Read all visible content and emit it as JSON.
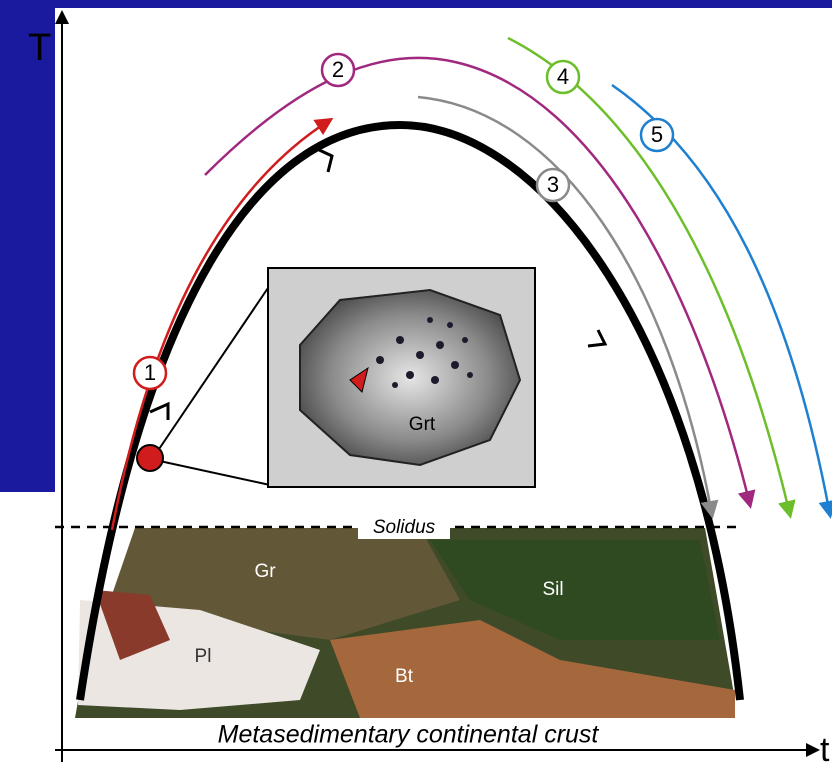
{
  "axes": {
    "y_label": "T",
    "x_label": "t"
  },
  "paths": [
    {
      "label": "1"
    },
    {
      "label": "2"
    },
    {
      "label": "3"
    },
    {
      "label": "4"
    },
    {
      "label": "5"
    }
  ],
  "solidus": "Solidus",
  "inset_label": "Grt",
  "photo_labels": [
    "Gr",
    "Sil",
    "Pl",
    "Bt"
  ],
  "crust_label": "Metasedimentary continental crust"
}
